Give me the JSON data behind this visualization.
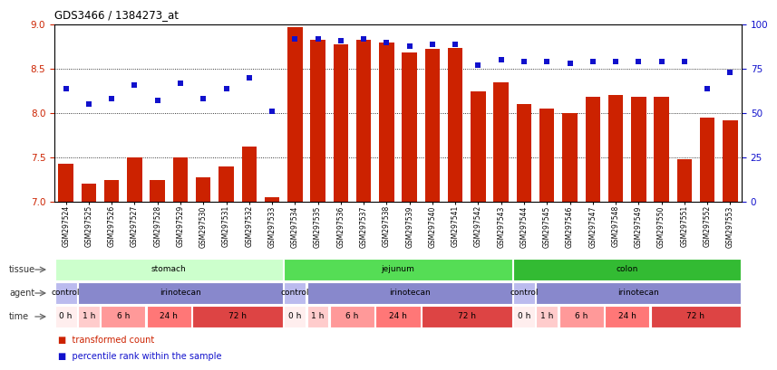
{
  "title": "GDS3466 / 1384273_at",
  "samples": [
    "GSM297524",
    "GSM297525",
    "GSM297526",
    "GSM297527",
    "GSM297528",
    "GSM297529",
    "GSM297530",
    "GSM297531",
    "GSM297532",
    "GSM297533",
    "GSM297534",
    "GSM297535",
    "GSM297536",
    "GSM297537",
    "GSM297538",
    "GSM297539",
    "GSM297540",
    "GSM297541",
    "GSM297542",
    "GSM297543",
    "GSM297544",
    "GSM297545",
    "GSM297546",
    "GSM297547",
    "GSM297548",
    "GSM297549",
    "GSM297550",
    "GSM297551",
    "GSM297552",
    "GSM297553"
  ],
  "bar_values": [
    7.43,
    7.2,
    7.25,
    7.5,
    7.25,
    7.5,
    7.28,
    7.4,
    7.62,
    7.05,
    8.97,
    8.83,
    8.78,
    8.83,
    8.8,
    8.68,
    8.72,
    8.73,
    8.25,
    8.35,
    8.1,
    8.05,
    8.0,
    8.18,
    8.2,
    8.18,
    8.18,
    7.48,
    7.95,
    7.92
  ],
  "percentile_values": [
    64,
    55,
    58,
    66,
    57,
    67,
    58,
    64,
    70,
    51,
    92,
    92,
    91,
    92,
    90,
    88,
    89,
    89,
    77,
    80,
    79,
    79,
    78,
    79,
    79,
    79,
    79,
    79,
    64,
    73
  ],
  "bar_color": "#cc2200",
  "percentile_color": "#1111cc",
  "ylim_left": [
    7.0,
    9.0
  ],
  "ylim_right": [
    0,
    100
  ],
  "yticks_left": [
    7.0,
    7.5,
    8.0,
    8.5,
    9.0
  ],
  "yticks_right": [
    0,
    25,
    50,
    75,
    100
  ],
  "tissue_groups": [
    {
      "label": "stomach",
      "start": 0,
      "end": 9,
      "color": "#ccffcc"
    },
    {
      "label": "jejunum",
      "start": 10,
      "end": 19,
      "color": "#55dd55"
    },
    {
      "label": "colon",
      "start": 20,
      "end": 29,
      "color": "#33bb33"
    }
  ],
  "agent_groups": [
    {
      "label": "control",
      "start": 0,
      "end": 0,
      "color": "#bbbbee"
    },
    {
      "label": "irinotecan",
      "start": 1,
      "end": 9,
      "color": "#8888cc"
    },
    {
      "label": "control",
      "start": 10,
      "end": 10,
      "color": "#bbbbee"
    },
    {
      "label": "irinotecan",
      "start": 11,
      "end": 19,
      "color": "#8888cc"
    },
    {
      "label": "control",
      "start": 20,
      "end": 20,
      "color": "#bbbbee"
    },
    {
      "label": "irinotecan",
      "start": 21,
      "end": 29,
      "color": "#8888cc"
    }
  ],
  "time_groups": [
    {
      "label": "0 h",
      "start": 0,
      "end": 0,
      "color": "#ffeeee"
    },
    {
      "label": "1 h",
      "start": 1,
      "end": 1,
      "color": "#ffcccc"
    },
    {
      "label": "6 h",
      "start": 2,
      "end": 3,
      "color": "#ff9999"
    },
    {
      "label": "24 h",
      "start": 4,
      "end": 5,
      "color": "#ff7777"
    },
    {
      "label": "72 h",
      "start": 6,
      "end": 9,
      "color": "#dd4444"
    },
    {
      "label": "0 h",
      "start": 10,
      "end": 10,
      "color": "#ffeeee"
    },
    {
      "label": "1 h",
      "start": 11,
      "end": 11,
      "color": "#ffcccc"
    },
    {
      "label": "6 h",
      "start": 12,
      "end": 13,
      "color": "#ff9999"
    },
    {
      "label": "24 h",
      "start": 14,
      "end": 15,
      "color": "#ff7777"
    },
    {
      "label": "72 h",
      "start": 16,
      "end": 19,
      "color": "#dd4444"
    },
    {
      "label": "0 h",
      "start": 20,
      "end": 20,
      "color": "#ffeeee"
    },
    {
      "label": "1 h",
      "start": 21,
      "end": 21,
      "color": "#ffcccc"
    },
    {
      "label": "6 h",
      "start": 22,
      "end": 23,
      "color": "#ff9999"
    },
    {
      "label": "24 h",
      "start": 24,
      "end": 25,
      "color": "#ff7777"
    },
    {
      "label": "72 h",
      "start": 26,
      "end": 29,
      "color": "#dd4444"
    }
  ],
  "legend_items": [
    {
      "label": "transformed count",
      "color": "#cc2200"
    },
    {
      "label": "percentile rank within the sample",
      "color": "#1111cc"
    }
  ],
  "background_color": "#ffffff",
  "bar_bottom": 7.0
}
